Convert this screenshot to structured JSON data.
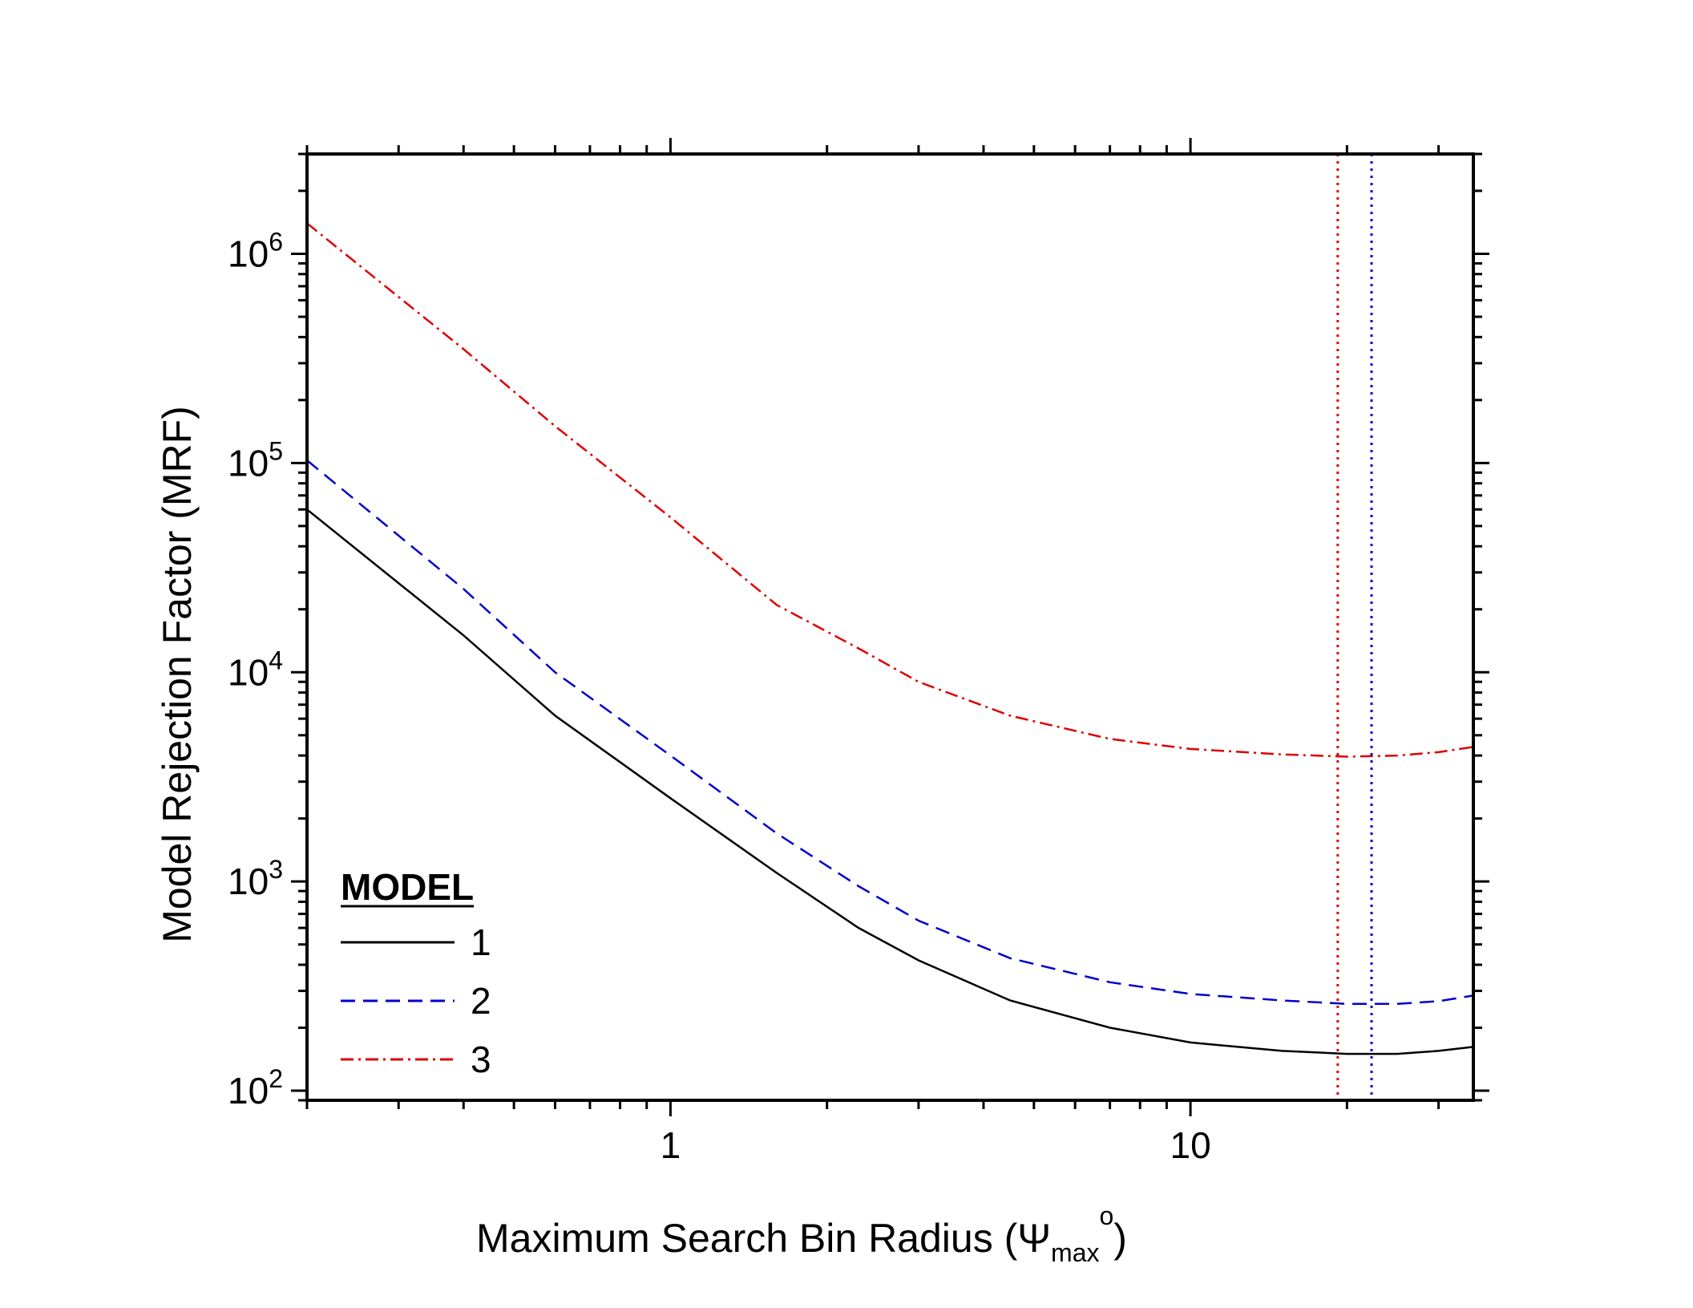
{
  "chart_data": {
    "type": "line",
    "xlabel": "Maximum Search Bin Radius (",
    "xlabel_symbol": "Ψ",
    "xlabel_sub": "max",
    "xlabel_sup": "o",
    "xlabel_end": ")",
    "ylabel": "Model Rejection Factor (MRF)",
    "xscale": "log",
    "yscale": "log",
    "xlim": [
      0.2,
      35
    ],
    "ylim": [
      90,
      3000000
    ],
    "x_ticks": [
      {
        "value": 1,
        "label": "1"
      },
      {
        "value": 10,
        "label": "10"
      }
    ],
    "y_ticks": [
      {
        "value": 100,
        "base": "10",
        "exp": "2"
      },
      {
        "value": 1000,
        "base": "10",
        "exp": "3"
      },
      {
        "value": 10000,
        "base": "10",
        "exp": "4"
      },
      {
        "value": 100000,
        "base": "10",
        "exp": "5"
      },
      {
        "value": 1000000,
        "base": "10",
        "exp": "6"
      }
    ],
    "legend": {
      "title": "MODEL",
      "position": "bottom-left"
    },
    "series": [
      {
        "name": "1",
        "color": "#000000",
        "style": "solid",
        "points": [
          [
            0.2,
            60000
          ],
          [
            0.4,
            15000
          ],
          [
            0.6,
            6200
          ],
          [
            1.0,
            2500
          ],
          [
            1.6,
            1100
          ],
          [
            2.3,
            600
          ],
          [
            3.0,
            420
          ],
          [
            4.5,
            270
          ],
          [
            7.0,
            200
          ],
          [
            10,
            170
          ],
          [
            15,
            155
          ],
          [
            20,
            150
          ],
          [
            25,
            150
          ],
          [
            30,
            155
          ],
          [
            35,
            162
          ]
        ]
      },
      {
        "name": "2",
        "color": "#0000cc",
        "style": "dashed",
        "points": [
          [
            0.2,
            103000
          ],
          [
            0.4,
            25000
          ],
          [
            0.6,
            10000
          ],
          [
            1.0,
            4000
          ],
          [
            1.6,
            1700
          ],
          [
            2.3,
            950
          ],
          [
            3.0,
            650
          ],
          [
            4.5,
            430
          ],
          [
            7.0,
            330
          ],
          [
            10,
            290
          ],
          [
            15,
            270
          ],
          [
            20,
            260
          ],
          [
            25,
            260
          ],
          [
            30,
            268
          ],
          [
            35,
            285
          ]
        ]
      },
      {
        "name": "3",
        "color": "#dd0000",
        "style": "dashdot",
        "points": [
          [
            0.2,
            1400000
          ],
          [
            0.4,
            350000
          ],
          [
            0.6,
            150000
          ],
          [
            1.0,
            55000
          ],
          [
            1.6,
            21000
          ],
          [
            2.3,
            13000
          ],
          [
            3.0,
            9000
          ],
          [
            4.5,
            6200
          ],
          [
            7.0,
            4800
          ],
          [
            10,
            4300
          ],
          [
            15,
            4050
          ],
          [
            20,
            3950
          ],
          [
            25,
            4000
          ],
          [
            30,
            4150
          ],
          [
            35,
            4400
          ]
        ]
      }
    ],
    "vertical_lines": [
      {
        "x": 19.2,
        "color": "#dd0000",
        "style": "dotted"
      },
      {
        "x": 22.3,
        "color": "#0000cc",
        "style": "dotted"
      }
    ]
  }
}
